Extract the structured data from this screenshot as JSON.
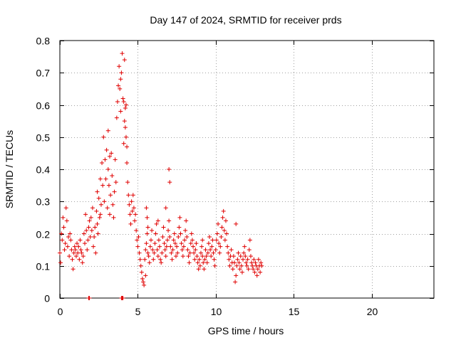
{
  "chart_data": {
    "type": "scatter",
    "title": "Day 147 of 2024, SRMTID for receiver prds",
    "xlabel": "GPS time / hours",
    "ylabel": "SRMTID / TECUs",
    "xlim": [
      0,
      24
    ],
    "ylim": [
      0,
      0.8
    ],
    "xticks": [
      0,
      5,
      10,
      15,
      20
    ],
    "xtick_labels": [
      "0",
      "5",
      "10",
      "15",
      "20"
    ],
    "yticks": [
      0,
      0.1,
      0.2,
      0.3,
      0.4,
      0.5,
      0.6,
      0.7,
      0.8
    ],
    "ytick_labels": [
      "0",
      "0.1",
      "0.2",
      "0.3",
      "0.4",
      "0.5",
      "0.6",
      "0.7",
      "0.8"
    ],
    "grid": true,
    "marker": "plus",
    "series": [
      {
        "name": "SRMTID",
        "color": "#e00000",
        "x": [
          0.0,
          0.05,
          0.1,
          0.15,
          0.2,
          0.25,
          0.3,
          0.35,
          0.4,
          0.45,
          0.5,
          0.55,
          0.6,
          0.65,
          0.7,
          0.75,
          0.8,
          0.85,
          0.9,
          0.95,
          1.0,
          1.05,
          1.1,
          1.15,
          1.2,
          1.25,
          1.3,
          1.35,
          1.4,
          1.45,
          1.5,
          1.55,
          1.6,
          1.65,
          1.7,
          1.75,
          1.8,
          1.85,
          1.9,
          1.95,
          2.0,
          2.05,
          2.1,
          2.15,
          2.2,
          2.25,
          2.3,
          2.35,
          2.4,
          2.45,
          2.5,
          2.55,
          2.6,
          2.65,
          2.7,
          2.75,
          2.8,
          2.85,
          2.9,
          2.95,
          3.0,
          3.05,
          3.1,
          3.15,
          3.2,
          3.25,
          3.3,
          3.35,
          3.4,
          3.45,
          3.5,
          3.55,
          3.6,
          3.65,
          3.7,
          3.75,
          3.8,
          3.85,
          3.9,
          3.95,
          4.0,
          4.05,
          4.1,
          4.15,
          4.2,
          4.25,
          4.3,
          4.35,
          4.4,
          4.45,
          4.5,
          4.55,
          4.6,
          4.65,
          4.7,
          4.75,
          4.8,
          4.85,
          4.9,
          4.95,
          5.0,
          5.05,
          5.1,
          5.15,
          5.2,
          5.25,
          5.3,
          5.35,
          5.4,
          5.45,
          5.5,
          5.55,
          5.6,
          5.65,
          5.7,
          5.75,
          5.8,
          5.85,
          5.9,
          5.95,
          6.0,
          6.05,
          6.1,
          6.15,
          6.2,
          6.25,
          6.3,
          6.35,
          6.4,
          6.45,
          6.5,
          6.55,
          6.6,
          6.65,
          6.7,
          6.75,
          6.8,
          6.85,
          6.9,
          6.95,
          7.0,
          7.05,
          7.1,
          7.15,
          7.2,
          7.25,
          7.3,
          7.35,
          7.4,
          7.45,
          7.5,
          7.55,
          7.6,
          7.65,
          7.7,
          7.75,
          7.8,
          7.85,
          7.9,
          7.95,
          8.0,
          8.05,
          8.1,
          8.15,
          8.2,
          8.25,
          8.3,
          8.35,
          8.4,
          8.45,
          8.5,
          8.55,
          8.6,
          8.65,
          8.7,
          8.75,
          8.8,
          8.85,
          8.9,
          8.95,
          9.0,
          9.05,
          9.1,
          9.15,
          9.2,
          9.25,
          9.3,
          9.35,
          9.4,
          9.45,
          9.5,
          9.55,
          9.6,
          9.65,
          9.7,
          9.75,
          9.8,
          9.85,
          9.9,
          9.95,
          10.0,
          10.05,
          10.1,
          10.15,
          10.2,
          10.25,
          10.3,
          10.35,
          10.4,
          10.45,
          10.5,
          10.55,
          10.6,
          10.65,
          10.7,
          10.75,
          10.8,
          10.85,
          10.9,
          10.95,
          11.0,
          11.05,
          11.1,
          11.15,
          11.2,
          11.25,
          11.3,
          11.35,
          11.4,
          11.45,
          11.5,
          11.55,
          11.6,
          11.65,
          11.7,
          11.75,
          11.8,
          11.85,
          11.9,
          11.95,
          12.0,
          12.05,
          12.1,
          12.15,
          12.2,
          12.25,
          12.3,
          12.35,
          12.4,
          12.45,
          12.5,
          12.55,
          12.6,
          12.65,
          12.7,
          12.75,
          12.8,
          12.85,
          12.9,
          12.95,
          1.85,
          1.9,
          4.05,
          3.95,
          4.0,
          4.1,
          4.2,
          7.0,
          7.05,
          4.15,
          3.9,
          4.25,
          4.3,
          3.1,
          3.2,
          2.4,
          2.6,
          5.55,
          5.6,
          5.65,
          6.8,
          5.5,
          6.3,
          9.15,
          11.3
        ],
        "y": [
          0.14,
          0.11,
          0.2,
          0.18,
          0.25,
          0.22,
          0.15,
          0.17,
          0.28,
          0.24,
          0.16,
          0.19,
          0.13,
          0.2,
          0.18,
          0.15,
          0.12,
          0.09,
          0.14,
          0.16,
          0.15,
          0.13,
          0.17,
          0.14,
          0.16,
          0.12,
          0.18,
          0.15,
          0.14,
          0.11,
          0.13,
          0.2,
          0.17,
          0.26,
          0.21,
          0.15,
          0.18,
          0.22,
          0.24,
          0.19,
          0.25,
          0.21,
          0.28,
          0.16,
          0.19,
          0.22,
          0.14,
          0.27,
          0.33,
          0.2,
          0.31,
          0.25,
          0.37,
          0.29,
          0.42,
          0.35,
          0.5,
          0.3,
          0.43,
          0.37,
          0.46,
          0.28,
          0.4,
          0.35,
          0.26,
          0.32,
          0.45,
          0.38,
          0.29,
          0.25,
          0.33,
          0.43,
          0.36,
          0.56,
          0.61,
          0.66,
          0.72,
          0.65,
          0.58,
          0.7,
          0.76,
          0.62,
          0.48,
          0.55,
          0.59,
          0.5,
          0.42,
          0.36,
          0.32,
          0.29,
          0.26,
          0.23,
          0.3,
          0.27,
          0.32,
          0.28,
          0.24,
          0.26,
          0.21,
          0.18,
          0.16,
          0.19,
          0.14,
          0.12,
          0.1,
          0.08,
          0.06,
          0.05,
          0.04,
          0.12,
          0.15,
          0.17,
          0.2,
          0.14,
          0.13,
          0.11,
          0.16,
          0.18,
          0.21,
          0.15,
          0.12,
          0.14,
          0.17,
          0.2,
          0.23,
          0.15,
          0.13,
          0.18,
          0.16,
          0.12,
          0.11,
          0.14,
          0.19,
          0.22,
          0.17,
          0.15,
          0.13,
          0.16,
          0.18,
          0.21,
          0.24,
          0.19,
          0.16,
          0.14,
          0.12,
          0.15,
          0.18,
          0.2,
          0.17,
          0.13,
          0.16,
          0.14,
          0.19,
          0.22,
          0.25,
          0.2,
          0.17,
          0.15,
          0.13,
          0.16,
          0.18,
          0.21,
          0.24,
          0.19,
          0.15,
          0.13,
          0.11,
          0.14,
          0.17,
          0.2,
          0.18,
          0.16,
          0.14,
          0.12,
          0.15,
          0.17,
          0.13,
          0.11,
          0.09,
          0.12,
          0.1,
          0.14,
          0.16,
          0.13,
          0.11,
          0.09,
          0.12,
          0.15,
          0.13,
          0.11,
          0.14,
          0.17,
          0.19,
          0.15,
          0.13,
          0.16,
          0.18,
          0.14,
          0.12,
          0.1,
          0.15,
          0.18,
          0.2,
          0.23,
          0.17,
          0.14,
          0.16,
          0.19,
          0.22,
          0.25,
          0.27,
          0.21,
          0.18,
          0.24,
          0.2,
          0.16,
          0.14,
          0.12,
          0.1,
          0.13,
          0.15,
          0.11,
          0.09,
          0.13,
          0.11,
          0.05,
          0.07,
          0.1,
          0.12,
          0.14,
          0.11,
          0.09,
          0.13,
          0.1,
          0.08,
          0.12,
          0.14,
          0.16,
          0.13,
          0.11,
          0.1,
          0.12,
          0.09,
          0.15,
          0.18,
          0.13,
          0.11,
          0.1,
          0.09,
          0.12,
          0.08,
          0.11,
          0.1,
          0.07,
          0.09,
          0.12,
          0.1,
          0.08,
          0.11,
          0.1,
          0.0,
          0.0,
          0.0,
          0.0,
          0.0,
          0.61,
          0.53,
          0.4,
          0.36,
          0.74,
          0.68,
          0.6,
          0.47,
          0.52,
          0.44,
          0.23,
          0.26,
          0.28,
          0.25,
          0.22,
          0.28,
          0.07,
          0.24,
          0.18,
          0.23
        ]
      }
    ]
  }
}
